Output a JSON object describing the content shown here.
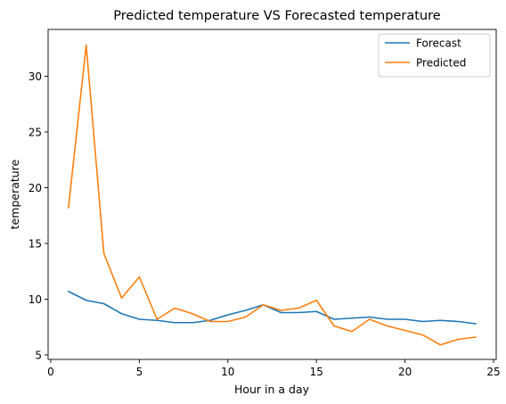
{
  "chart_data": {
    "type": "line",
    "title": "Predicted temperature VS Forecasted temperature",
    "xlabel": "Hour in a day",
    "ylabel": "temperature",
    "xlim": [
      -0.15,
      25.15
    ],
    "ylim": [
      4.6,
      34.2
    ],
    "xticks": [
      0,
      5,
      10,
      15,
      20,
      25
    ],
    "yticks": [
      5,
      10,
      15,
      20,
      25,
      30
    ],
    "grid": false,
    "legend_position": "top-right",
    "x": [
      1,
      2,
      3,
      4,
      5,
      6,
      7,
      8,
      9,
      10,
      11,
      12,
      13,
      14,
      15,
      16,
      17,
      18,
      19,
      20,
      21,
      22,
      23,
      24
    ],
    "series": [
      {
        "name": "Forecast",
        "color": "#1f77b4",
        "values": [
          10.7,
          9.9,
          9.6,
          8.7,
          8.2,
          8.1,
          7.9,
          7.9,
          8.1,
          8.6,
          9.0,
          9.5,
          8.8,
          8.8,
          8.9,
          8.2,
          8.3,
          8.4,
          8.2,
          8.2,
          8.0,
          8.1,
          8.0,
          7.8
        ]
      },
      {
        "name": "Predicted",
        "color": "#ff7f0e",
        "values": [
          18.2,
          32.8,
          14.1,
          10.1,
          12.0,
          8.2,
          9.2,
          8.7,
          8.0,
          8.0,
          8.4,
          9.5,
          9.0,
          9.2,
          9.9,
          7.6,
          7.1,
          8.2,
          7.6,
          7.2,
          6.8,
          5.9,
          6.4,
          6.6
        ]
      }
    ]
  }
}
